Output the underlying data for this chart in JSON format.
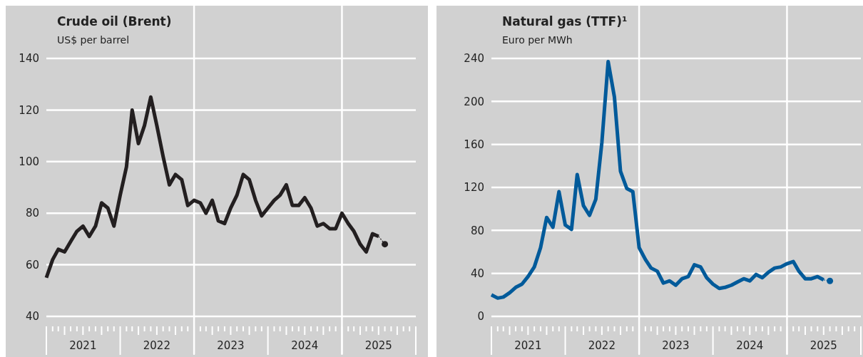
{
  "chart_data": [
    {
      "type": "line",
      "title": "Crude oil (Brent)",
      "subtitle": "US$ per barrel",
      "xlim": [
        "2021-01",
        "2026-01"
      ],
      "xticks": [
        {
          "value": "2021-07",
          "label": "2021"
        },
        {
          "value": "2022-07",
          "label": "2022"
        },
        {
          "value": "2023-07",
          "label": "2023"
        },
        {
          "value": "2024-07",
          "label": "2024"
        },
        {
          "value": "2025-07",
          "label": "2025"
        }
      ],
      "ylim": [
        40,
        140
      ],
      "yticks": [
        40,
        60,
        80,
        100,
        120,
        140
      ],
      "grid": "y",
      "ref_lines": [
        {
          "axis": "x",
          "value": "2023-01",
          "label": null,
          "color": "#ffffff"
        },
        {
          "axis": "x",
          "value": "2025-01",
          "label": null,
          "color": "#ffffff"
        }
      ],
      "series": [
        {
          "type": "line",
          "color": "#231f20",
          "line_style": "solid",
          "x": [
            "2021-01",
            "2021-02",
            "2021-03",
            "2021-04",
            "2021-05",
            "2021-06",
            "2021-07",
            "2021-08",
            "2021-09",
            "2021-10",
            "2021-11",
            "2021-12",
            "2022-01",
            "2022-02",
            "2022-03",
            "2022-04",
            "2022-05",
            "2022-06",
            "2022-07",
            "2022-08",
            "2022-09",
            "2022-10",
            "2022-11",
            "2022-12",
            "2023-01",
            "2023-02",
            "2023-03",
            "2023-04",
            "2023-05",
            "2023-06",
            "2023-07",
            "2023-08",
            "2023-09",
            "2023-10",
            "2023-11",
            "2023-12",
            "2024-01",
            "2024-02",
            "2024-03",
            "2024-04",
            "2024-05",
            "2024-06",
            "2024-07",
            "2024-08",
            "2024-09",
            "2024-10",
            "2024-11",
            "2024-12",
            "2025-01",
            "2025-02",
            "2025-03",
            "2025-04",
            "2025-05",
            "2025-06",
            "2025-07"
          ],
          "values": [
            55,
            62,
            66,
            65,
            69,
            73,
            75,
            71,
            75,
            84,
            82,
            75,
            87,
            98,
            120,
            107,
            114,
            125,
            114,
            102,
            91,
            95,
            93,
            83,
            85,
            84,
            80,
            85,
            77,
            76,
            82,
            87,
            95,
            93,
            85,
            79,
            82,
            85,
            87,
            91,
            83,
            83,
            86,
            82,
            75,
            76,
            74,
            74,
            80,
            76,
            73,
            68,
            65,
            72,
            71
          ]
        },
        {
          "type": "line",
          "color": "#231f20",
          "line_style": "dotted",
          "marker": "none",
          "x": [
            "2025-07",
            "2025-08"
          ],
          "values": [
            71,
            68
          ]
        },
        {
          "type": "scatter",
          "color": "#231f20",
          "marker": "circle",
          "x": [
            "2025-08"
          ],
          "values": [
            68
          ]
        }
      ]
    },
    {
      "type": "line",
      "title": "Natural gas (TTF)¹",
      "subtitle": "Euro per MWh",
      "xlim": [
        "2021-01",
        "2026-01"
      ],
      "xticks": [
        {
          "value": "2021-07",
          "label": "2021"
        },
        {
          "value": "2022-07",
          "label": "2022"
        },
        {
          "value": "2023-07",
          "label": "2023"
        },
        {
          "value": "2024-07",
          "label": "2024"
        },
        {
          "value": "2025-07",
          "label": "2025"
        }
      ],
      "ylim": [
        0,
        240
      ],
      "yticks": [
        0,
        40,
        80,
        120,
        160,
        200,
        240
      ],
      "grid": "y",
      "ref_lines": [
        {
          "axis": "x",
          "value": "2023-01",
          "label": null,
          "color": "#ffffff"
        },
        {
          "axis": "x",
          "value": "2025-01",
          "label": null,
          "color": "#ffffff"
        }
      ],
      "series": [
        {
          "type": "line",
          "color": "#005a9a",
          "line_style": "solid",
          "x": [
            "2021-01",
            "2021-02",
            "2021-03",
            "2021-04",
            "2021-05",
            "2021-06",
            "2021-07",
            "2021-08",
            "2021-09",
            "2021-10",
            "2021-11",
            "2021-12",
            "2022-01",
            "2022-02",
            "2022-03",
            "2022-04",
            "2022-05",
            "2022-06",
            "2022-07",
            "2022-08",
            "2022-09",
            "2022-10",
            "2022-11",
            "2022-12",
            "2023-01",
            "2023-02",
            "2023-03",
            "2023-04",
            "2023-05",
            "2023-06",
            "2023-07",
            "2023-08",
            "2023-09",
            "2023-10",
            "2023-11",
            "2023-12",
            "2024-01",
            "2024-02",
            "2024-03",
            "2024-04",
            "2024-05",
            "2024-06",
            "2024-07",
            "2024-08",
            "2024-09",
            "2024-10",
            "2024-11",
            "2024-12",
            "2025-01",
            "2025-02",
            "2025-03",
            "2025-04",
            "2025-05",
            "2025-06",
            "2025-07"
          ],
          "values": [
            20,
            17,
            18,
            22,
            27,
            30,
            37,
            46,
            64,
            92,
            83,
            116,
            85,
            81,
            132,
            103,
            94,
            109,
            162,
            237,
            204,
            135,
            119,
            116,
            64,
            53,
            45,
            42,
            31,
            33,
            29,
            35,
            37,
            48,
            46,
            36,
            30,
            26,
            27,
            29,
            32,
            35,
            33,
            39,
            36,
            41,
            45,
            46,
            49,
            51,
            42,
            35,
            35,
            37,
            34
          ]
        },
        {
          "type": "line",
          "color": "#005a9a",
          "line_style": "dotted",
          "marker": "none",
          "x": [
            "2025-07",
            "2025-08"
          ],
          "values": [
            34,
            33
          ]
        },
        {
          "type": "scatter",
          "color": "#005a9a",
          "marker": "circle",
          "x": [
            "2025-08"
          ],
          "values": [
            33
          ]
        }
      ]
    }
  ]
}
